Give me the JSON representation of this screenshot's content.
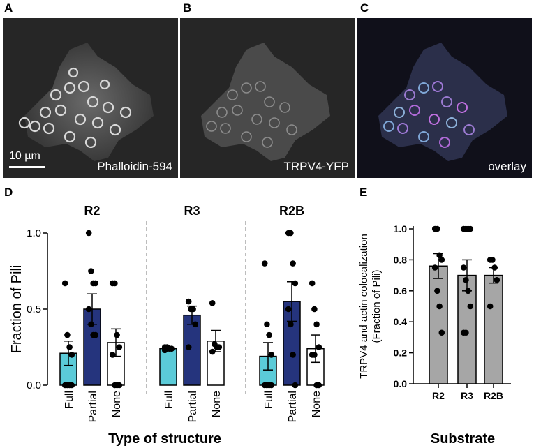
{
  "figure": {
    "panel_letters": {
      "A": "A",
      "B": "B",
      "C": "C",
      "D": "D",
      "E": "E"
    },
    "micrographs": [
      {
        "letter": "A",
        "label": "Phalloidin-594",
        "scale_bar": "10 µm"
      },
      {
        "letter": "B",
        "label": "TRPV4-YFP"
      },
      {
        "letter": "C",
        "label": "overlay"
      }
    ]
  },
  "chart_data": [
    {
      "panel": "D",
      "type": "bar",
      "ylabel": "Fraction of Pili",
      "xlabel": "Type of structure",
      "ylim": [
        0,
        1.0
      ],
      "yticks": [
        "0.0",
        "0.5",
        "1.0"
      ],
      "categories": [
        "Full",
        "Partial",
        "None"
      ],
      "colors": {
        "Full": "#5bcbd8",
        "Partial": "#25347d",
        "None": "#ffffff"
      },
      "groups": [
        {
          "name": "R2",
          "bars": [
            {
              "category": "Full",
              "mean": 0.21,
              "sem": 0.08,
              "points": [
                0.67,
                0.33,
                0.25,
                0.2,
                0.0,
                0.0,
                0.0,
                0.0
              ]
            },
            {
              "category": "Partial",
              "mean": 0.5,
              "sem": 0.1,
              "points": [
                1.0,
                0.75,
                0.67,
                0.67,
                0.5,
                0.4,
                0.33,
                0.33
              ]
            },
            {
              "category": "None",
              "mean": 0.28,
              "sem": 0.09,
              "points": [
                0.67,
                0.67,
                0.33,
                0.25,
                0.2,
                0.0,
                0.0,
                0.0
              ]
            }
          ]
        },
        {
          "name": "R3",
          "bars": [
            {
              "category": "Full",
              "mean": 0.24,
              "sem": 0.01,
              "points": [
                0.25,
                0.25,
                0.24,
                0.24,
                0.23
              ]
            },
            {
              "category": "Partial",
              "mean": 0.46,
              "sem": 0.06,
              "points": [
                0.55,
                0.5,
                0.5,
                0.4,
                0.25
              ]
            },
            {
              "category": "None",
              "mean": 0.29,
              "sem": 0.07,
              "points": [
                0.54,
                0.27,
                0.25,
                0.25,
                0.22
              ]
            }
          ]
        },
        {
          "name": "R2B",
          "bars": [
            {
              "category": "Full",
              "mean": 0.19,
              "sem": 0.09,
              "points": [
                0.8,
                0.4,
                0.33,
                0.2,
                0.0,
                0.0,
                0.0,
                0.0
              ]
            },
            {
              "category": "Partial",
              "mean": 0.55,
              "sem": 0.13,
              "points": [
                1.0,
                1.0,
                0.8,
                0.67,
                0.5,
                0.4,
                0.2,
                0.0
              ]
            },
            {
              "category": "None",
              "mean": 0.24,
              "sem": 0.09,
              "points": [
                0.67,
                0.5,
                0.4,
                0.25,
                0.2,
                0.2,
                0.0,
                0.0
              ]
            }
          ]
        }
      ]
    },
    {
      "panel": "E",
      "type": "bar",
      "ylabel": "TRPV4 and actin colocalization (Fraction of Pili)",
      "xlabel": "Substrate",
      "ylim": [
        0,
        1.0
      ],
      "yticks": [
        "0.0",
        "0.2",
        "0.4",
        "0.6",
        "0.8",
        "1.0"
      ],
      "bar_color": "#a6a6a6",
      "categories": [
        "R2",
        "R3",
        "R2B"
      ],
      "bars": [
        {
          "category": "R2",
          "mean": 0.76,
          "sem": 0.08,
          "points": [
            1.0,
            1.0,
            0.83,
            0.8,
            0.75,
            0.6,
            0.5,
            0.33
          ]
        },
        {
          "category": "R3",
          "mean": 0.7,
          "sem": 0.1,
          "points": [
            1.0,
            1.0,
            1.0,
            1.0,
            0.75,
            0.67,
            0.6,
            0.5,
            0.33,
            0.33
          ]
        },
        {
          "category": "R2B",
          "mean": 0.7,
          "sem": 0.05,
          "points": [
            0.8,
            0.8,
            0.75,
            0.67,
            0.5
          ]
        }
      ]
    }
  ]
}
